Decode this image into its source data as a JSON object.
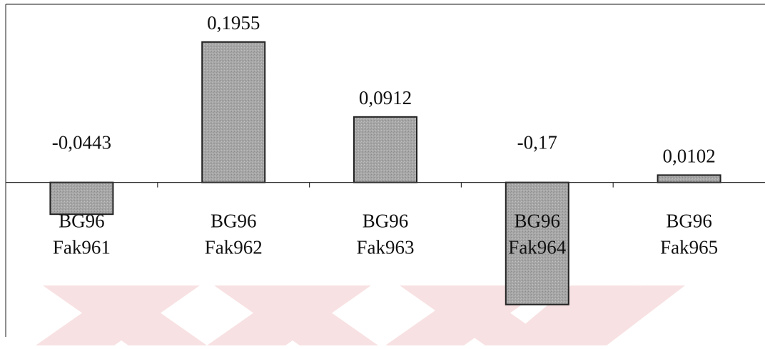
{
  "chart_data": {
    "type": "bar",
    "title": "",
    "xlabel": "",
    "ylabel": "",
    "categories": [
      [
        "BG96",
        "Fak961"
      ],
      [
        "BG96",
        "Fak962"
      ],
      [
        "BG96",
        "Fak963"
      ],
      [
        "BG96",
        "Fak964"
      ],
      [
        "BG96",
        "Fak965"
      ]
    ],
    "values": [
      -0.0443,
      0.1955,
      0.0912,
      -0.17,
      0.0102
    ],
    "value_labels": [
      "-0,0443",
      "0,1955",
      "0,0912",
      "-0,17",
      "0,0102"
    ],
    "ylim": [
      -0.215,
      0.248
    ],
    "grid": false,
    "legend": "none",
    "bar_color": "#9a9a9a",
    "background_watermark": "red chevrons"
  }
}
